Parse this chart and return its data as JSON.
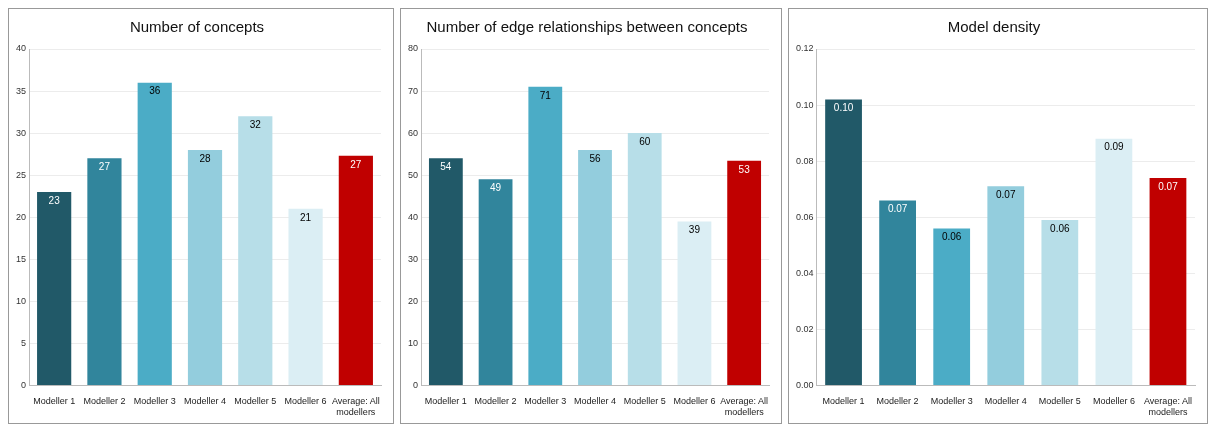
{
  "chart_data": [
    {
      "type": "bar",
      "title": "Number of concepts",
      "categories": [
        "Modeller 1",
        "Modeller 2",
        "Modeller 3",
        "Modeller 4",
        "Modeller 5",
        "Modeller 6",
        "Average: All modellers"
      ],
      "values": [
        23,
        27,
        36,
        28,
        32,
        21,
        27.3
      ],
      "colors": [
        "#215968",
        "#31859c",
        "#4bacc6",
        "#93cddd",
        "#b7dee8",
        "#dbeef4",
        "#c00000"
      ],
      "value_labels": [
        "23",
        "27",
        "36",
        "28",
        "32",
        "21",
        "27"
      ],
      "ylim": [
        0,
        40
      ],
      "yticks": [
        0,
        5,
        10,
        15,
        20,
        25,
        30,
        35,
        40
      ],
      "grid": "y"
    },
    {
      "type": "bar",
      "title": "Number of edge relationships between concepts",
      "categories": [
        "Modeller 1",
        "Modeller 2",
        "Modeller 3",
        "Modeller 4",
        "Modeller 5",
        "Modeller 6",
        "Average: All modellers"
      ],
      "values": [
        54,
        49,
        71,
        56,
        60,
        39,
        53.4
      ],
      "colors": [
        "#215968",
        "#31859c",
        "#4bacc6",
        "#93cddd",
        "#b7dee8",
        "#dbeef4",
        "#c00000"
      ],
      "value_labels": [
        "54",
        "49",
        "71",
        "56",
        "60",
        "39",
        "53"
      ],
      "ylim": [
        0,
        80
      ],
      "yticks": [
        0,
        10,
        20,
        30,
        40,
        50,
        60,
        70,
        80
      ],
      "grid": "y"
    },
    {
      "type": "bar",
      "title": "Model density",
      "categories": [
        "Modeller 1",
        "Modeller 2",
        "Modeller 3",
        "Modeller 4",
        "Modeller 5",
        "Modeller 6",
        "Average: All modellers"
      ],
      "values": [
        0.102,
        0.066,
        0.056,
        0.071,
        0.059,
        0.088,
        0.074
      ],
      "colors": [
        "#215968",
        "#31859c",
        "#4bacc6",
        "#93cddd",
        "#b7dee8",
        "#dbeef4",
        "#c00000"
      ],
      "value_labels": [
        "0.10",
        "0.07",
        "0.06",
        "0.07",
        "0.06",
        "0.09",
        "0.07"
      ],
      "ylim": [
        0,
        0.12
      ],
      "yticks": [
        {
          "value": 0,
          "label": "0.00"
        },
        {
          "value": 0.02,
          "label": "0.02"
        },
        {
          "value": 0.04,
          "label": "0.04"
        },
        {
          "value": 0.06,
          "label": "0.06"
        },
        {
          "value": 0.08,
          "label": "0.08"
        },
        {
          "value": 0.1,
          "label": "0.10"
        },
        {
          "value": 0.12,
          "label": "0.12"
        }
      ],
      "grid": "y"
    }
  ]
}
